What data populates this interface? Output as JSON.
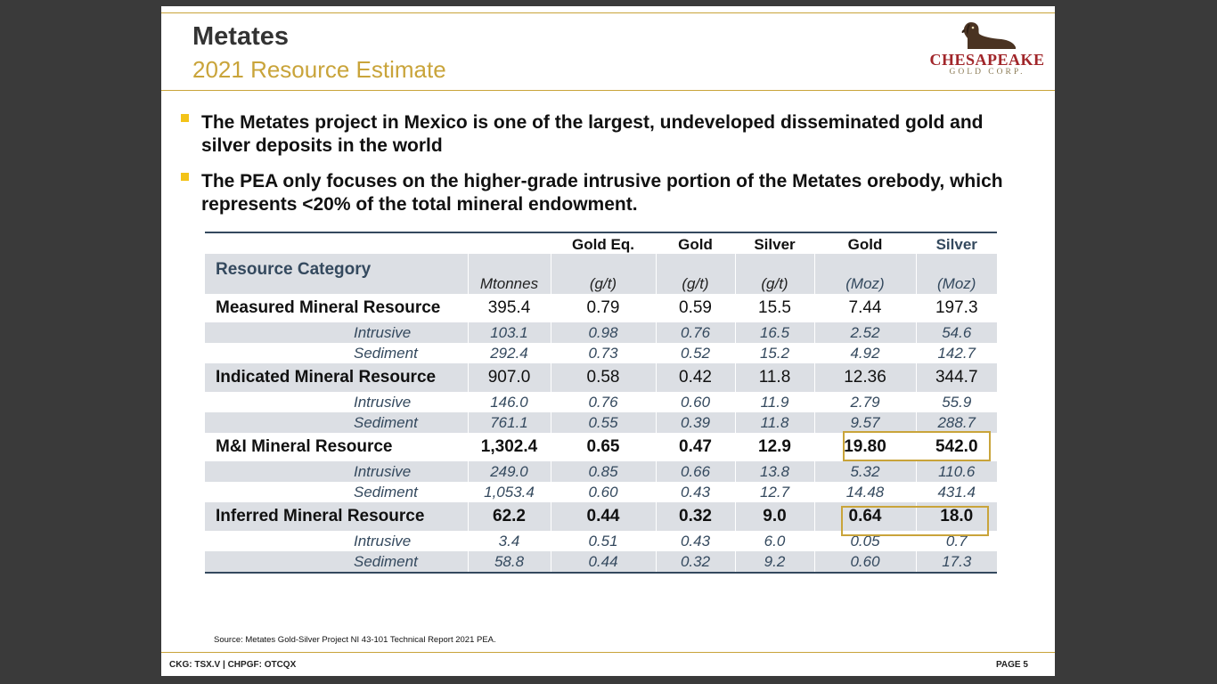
{
  "header": {
    "title": "Metates",
    "subtitle": "2021 Resource Estimate"
  },
  "logo": {
    "name": "CHESAPEAKE",
    "tagline": "GOLD CORP.",
    "icon": "dog-icon"
  },
  "bullets": [
    "The Metates project in Mexico is one of the largest, undeveloped disseminated gold and silver deposits in the world",
    "The PEA only focuses on the higher-grade intrusive portion of the Metates orebody, which represents <20% of the total mineral endowment."
  ],
  "table": {
    "top_headers": [
      "",
      "",
      "Gold Eq.",
      "Gold",
      "Silver",
      "Gold",
      "Silver"
    ],
    "unit_headers": [
      "Resource Category",
      "Mtonnes",
      "(g/t)",
      "(g/t)",
      "(g/t)",
      "(Moz)",
      "(Moz)"
    ],
    "rows": [
      {
        "type": "main",
        "cells": [
          "Measured Mineral Resource",
          "395.4",
          "0.79",
          "0.59",
          "15.5",
          "7.44",
          "197.3"
        ]
      },
      {
        "type": "sub",
        "cells": [
          "Intrusive",
          "103.1",
          "0.98",
          "0.76",
          "16.5",
          "2.52",
          "54.6"
        ]
      },
      {
        "type": "sub",
        "cells": [
          "Sediment",
          "292.4",
          "0.73",
          "0.52",
          "15.2",
          "4.92",
          "142.7"
        ]
      },
      {
        "type": "main",
        "cells": [
          "Indicated Mineral Resource",
          "907.0",
          "0.58",
          "0.42",
          "11.8",
          "12.36",
          "344.7"
        ]
      },
      {
        "type": "sub",
        "cells": [
          "Intrusive",
          "146.0",
          "0.76",
          "0.60",
          "11.9",
          "2.79",
          "55.9"
        ]
      },
      {
        "type": "sub",
        "cells": [
          "Sediment",
          "761.1",
          "0.55",
          "0.39",
          "11.8",
          "9.57",
          "288.7"
        ]
      },
      {
        "type": "main",
        "cells": [
          "M&I Mineral Resource",
          "1,302.4",
          "0.65",
          "0.47",
          "12.9",
          "19.80",
          "542.0"
        ]
      },
      {
        "type": "sub",
        "cells": [
          "Intrusive",
          "249.0",
          "0.85",
          "0.66",
          "13.8",
          "5.32",
          "110.6"
        ]
      },
      {
        "type": "sub",
        "cells": [
          "Sediment",
          "1,053.4",
          "0.60",
          "0.43",
          "12.7",
          "14.48",
          "431.4"
        ]
      },
      {
        "type": "main",
        "cells": [
          "Inferred Mineral Resource",
          "62.2",
          "0.44",
          "0.32",
          "9.0",
          "0.64",
          "18.0"
        ]
      },
      {
        "type": "sub",
        "cells": [
          "Intrusive",
          "3.4",
          "0.51",
          "0.43",
          "6.0",
          "0.05",
          "0.7"
        ]
      },
      {
        "type": "sub",
        "cells": [
          "Sediment",
          "58.8",
          "0.44",
          "0.32",
          "9.2",
          "0.60",
          "17.3"
        ]
      }
    ]
  },
  "source_note": "Source: Metates Gold-Silver Project NI 43-101 Technical Report 2021 PEA.",
  "footer": {
    "tickers": "CKG: TSX.V | CHPGF: OTCQX",
    "page": "PAGE 5"
  },
  "colors": {
    "accent_gold": "#c9a43a",
    "bullet_yellow": "#f3c318",
    "navy": "#34495e",
    "row_shade": "#dcdfe4",
    "logo_red": "#a1262a"
  }
}
